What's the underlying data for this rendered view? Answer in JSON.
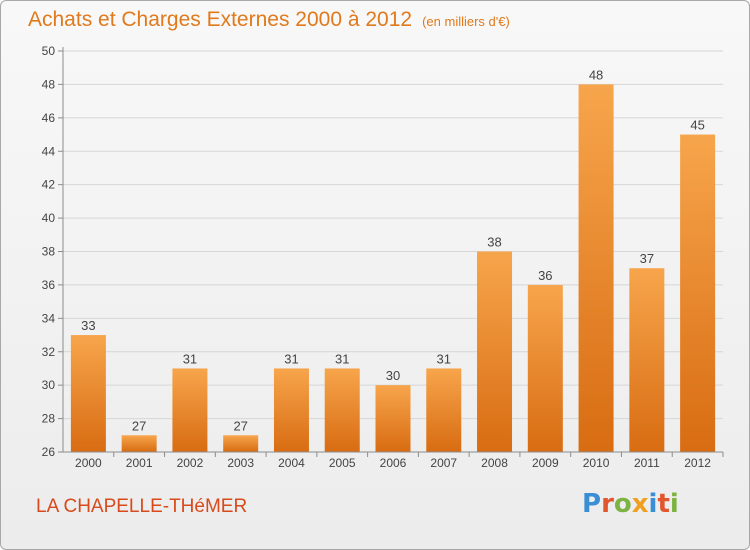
{
  "header": {
    "title": "Achats et Charges Externes 2000 à 2012",
    "unit": "(en milliers d'€)"
  },
  "footer": {
    "commune": "LA CHAPELLE-THéMER",
    "brand": "Proxiti"
  },
  "colors": {
    "bar_light": "#f7a54c",
    "bar_dark": "#d86c12",
    "title": "#e07a1d",
    "commune": "#d84a1c",
    "grid": "#d6d6d6",
    "axis": "#8c8c8c",
    "brand_letters": [
      "#3a8ed6",
      "#e2562e",
      "#7cb342",
      "#f0a020",
      "#3a8ed6",
      "#e2562e",
      "#7cb342"
    ]
  },
  "chart_data": {
    "type": "bar",
    "title": "Achats et Charges Externes 2000 à 2012",
    "subtitle": "(en milliers d'€)",
    "categories": [
      "2000",
      "2001",
      "2002",
      "2003",
      "2004",
      "2005",
      "2006",
      "2007",
      "2008",
      "2009",
      "2010",
      "2011",
      "2012"
    ],
    "values": [
      33,
      27,
      31,
      27,
      31,
      31,
      30,
      31,
      38,
      36,
      48,
      37,
      45
    ],
    "ylim": [
      26,
      50
    ],
    "yticks": [
      26,
      28,
      30,
      32,
      34,
      36,
      38,
      40,
      42,
      44,
      46,
      48,
      50
    ],
    "grid": true,
    "legend": "none",
    "data_labels": true
  }
}
